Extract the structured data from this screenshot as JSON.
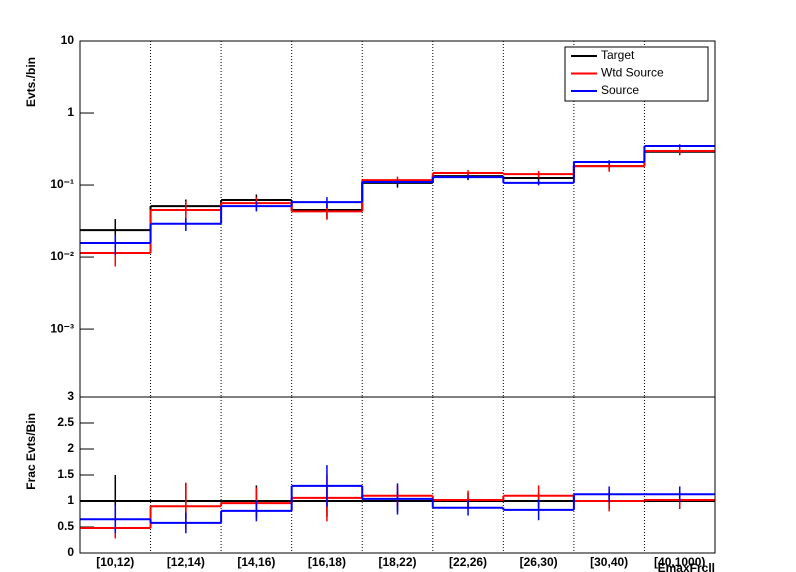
{
  "chart_data": [
    {
      "type": "step",
      "y_label": "Evts./bin",
      "log_scale": true,
      "ylim": [
        0.000114,
        10
      ],
      "yticks": [
        {
          "value": 0.001,
          "label": "10⁻³"
        },
        {
          "value": 0.01,
          "label": "10⁻²"
        },
        {
          "value": 0.1,
          "label": "10⁻¹"
        },
        1,
        10
      ],
      "legend": "upper right",
      "x_grid": true,
      "series": [
        {
          "name": "Target",
          "color": "#000000",
          "values": [
            0.0237,
            0.051,
            0.062,
            0.045,
            0.107,
            0.133,
            0.125,
            0.183,
            0.29
          ],
          "errors": [
            0.01,
            0.012,
            0.012,
            0.011,
            0.015,
            0.016,
            0.016,
            0.02,
            0.03
          ]
        },
        {
          "name": "Wtd Source",
          "color": "#ff0000",
          "values": [
            0.0114,
            0.045,
            0.056,
            0.043,
            0.117,
            0.147,
            0.142,
            0.183,
            0.297
          ],
          "errors": [
            0.004,
            0.015,
            0.012,
            0.01,
            0.014,
            0.015,
            0.015,
            0.03,
            0.03
          ]
        },
        {
          "name": "Source",
          "color": "#0000ff",
          "values": [
            0.0157,
            0.029,
            0.051,
            0.058,
            0.11,
            0.129,
            0.107,
            0.209,
            0.348
          ],
          "errors": [
            0.005,
            0.006,
            0.008,
            0.01,
            0.008,
            0.009,
            0.008,
            0.012,
            0.02
          ]
        }
      ]
    },
    {
      "type": "step",
      "y_label": "Frac Evts/Bin",
      "x_label": "EmaxFrcll",
      "log_scale": false,
      "ylim": [
        0,
        3
      ],
      "yticks": [
        0,
        0.5,
        1,
        1.5,
        2,
        2.5,
        3
      ],
      "x_grid": true,
      "categories": [
        "[10,12)",
        "[12,14)",
        "[14,16)",
        "[16,18)",
        "[18,22)",
        "[22,26)",
        "[26,30)",
        "[30,40)",
        "[40,1000)"
      ],
      "series": [
        {
          "color": "#000000",
          "values": [
            1,
            1,
            1,
            1,
            1,
            1,
            1,
            1,
            1
          ],
          "errors": [
            0.5,
            0.35,
            0.3,
            0.3,
            0.2,
            0.15,
            0.15,
            0.15,
            0.15
          ]
        },
        {
          "color": "#ff0000",
          "values": [
            0.48,
            0.9,
            0.96,
            1.06,
            1.1,
            1.02,
            1.1,
            1.0,
            1.02
          ],
          "errors": [
            0.2,
            0.45,
            0.3,
            0.45,
            0.2,
            0.18,
            0.2,
            0.2,
            0.15
          ]
        },
        {
          "color": "#0000ff",
          "values": [
            0.65,
            0.58,
            0.81,
            1.29,
            1.04,
            0.87,
            0.83,
            1.13,
            1.13
          ],
          "errors": [
            0.27,
            0.2,
            0.2,
            0.4,
            0.3,
            0.15,
            0.2,
            0.15,
            0.15
          ]
        }
      ]
    }
  ]
}
